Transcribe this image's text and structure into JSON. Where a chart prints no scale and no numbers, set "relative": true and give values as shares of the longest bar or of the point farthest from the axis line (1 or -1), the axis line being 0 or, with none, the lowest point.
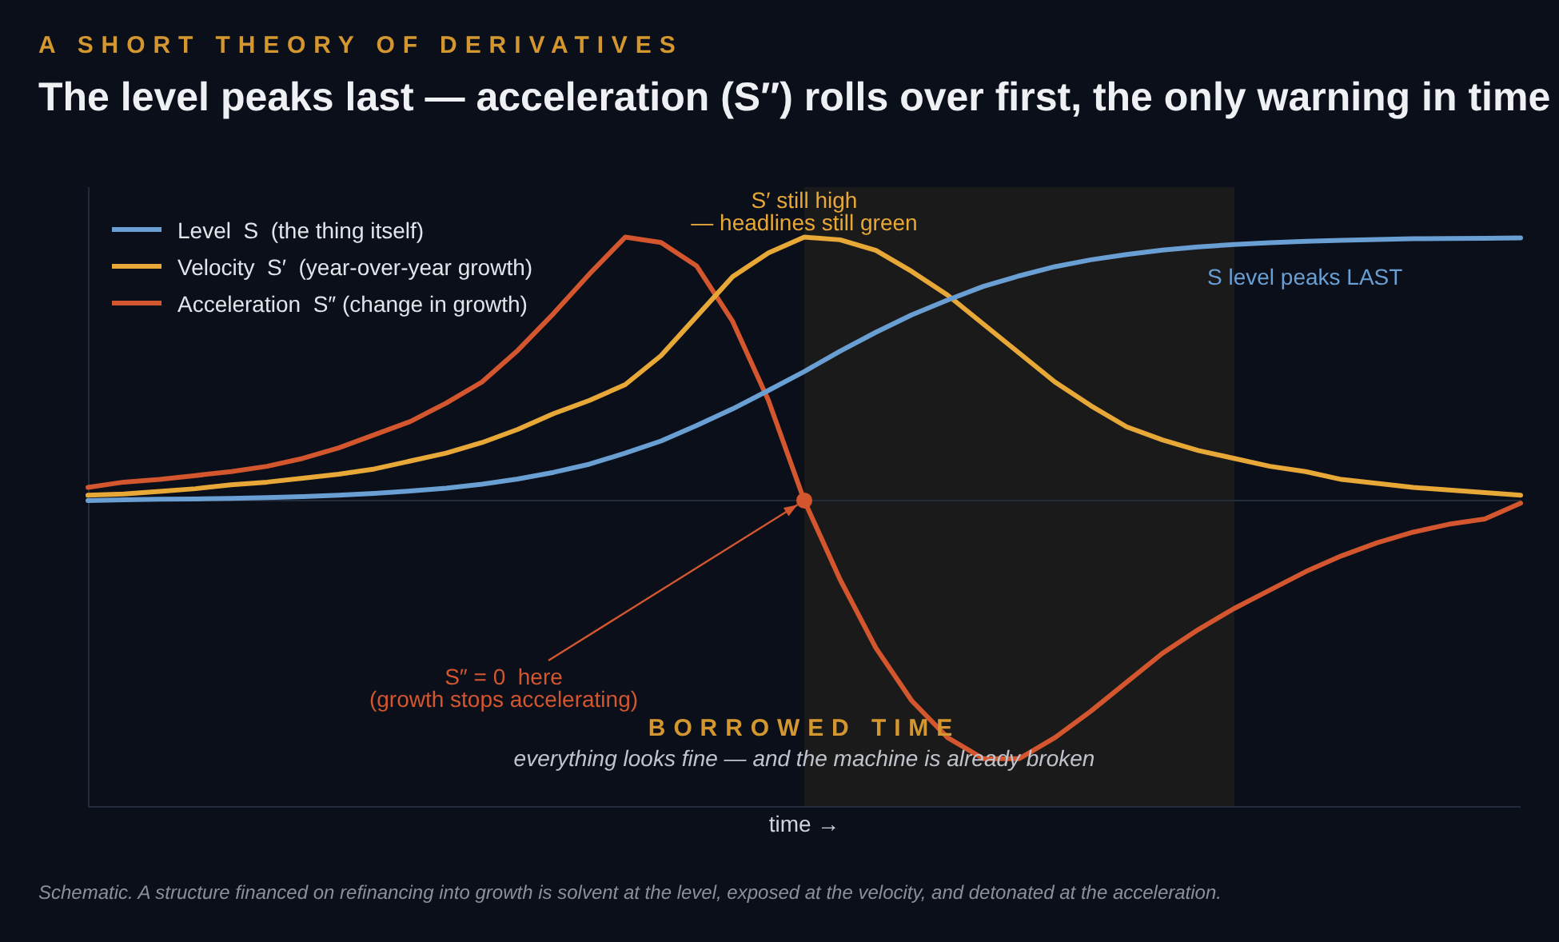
{
  "chart_data": {
    "type": "line",
    "subtitle": "A SHORT THEORY OF DERIVATIVES",
    "title": "The level peaks last — acceleration (S″) rolls over first, the only warning in time",
    "xlabel": "time →",
    "relative": true,
    "legend": "top left",
    "line_style": "solid",
    "categories": [
      null,
      null,
      null,
      null,
      null,
      null,
      null,
      null,
      null,
      null,
      null,
      null,
      null,
      null,
      null,
      null,
      null,
      null,
      null,
      null,
      null,
      null,
      null,
      null,
      null,
      null,
      null,
      null,
      null,
      null,
      null,
      null,
      null,
      null,
      null,
      null,
      null,
      null,
      null,
      null,
      null
    ],
    "series": [
      {
        "name": "Level  S  (the thing itself)",
        "color": "#6a9fd4",
        "values": [
          0.0,
          0.003,
          0.005,
          0.006,
          0.008,
          0.011,
          0.015,
          0.02,
          0.027,
          0.036,
          0.047,
          0.062,
          0.082,
          0.107,
          0.138,
          0.18,
          0.226,
          0.285,
          0.348,
          0.418,
          0.49,
          0.567,
          0.639,
          0.705,
          0.761,
          0.813,
          0.853,
          0.888,
          0.914,
          0.934,
          0.951,
          0.963,
          0.972,
          0.979,
          0.984,
          0.988,
          0.991,
          0.994,
          0.995,
          0.996,
          0.997
        ]
      },
      {
        "name": "Velocity  S′  (year-over-year growth)",
        "color": "#e8a838",
        "values": [
          0.02,
          0.025,
          0.035,
          0.045,
          0.06,
          0.07,
          0.085,
          0.1,
          0.12,
          0.15,
          0.18,
          0.22,
          0.27,
          0.33,
          0.38,
          0.44,
          0.55,
          0.7,
          0.85,
          0.94,
          1.0,
          0.99,
          0.95,
          0.87,
          0.78,
          0.67,
          0.56,
          0.45,
          0.36,
          0.28,
          0.23,
          0.19,
          0.16,
          0.13,
          0.11,
          0.08,
          0.065,
          0.05,
          0.04,
          0.03,
          0.02
        ]
      },
      {
        "name": "Acceleration  S″ (change in growth)",
        "color": "#d4562e",
        "values": [
          0.05,
          0.07,
          0.08,
          0.095,
          0.11,
          0.13,
          0.16,
          0.2,
          0.25,
          0.3,
          0.37,
          0.45,
          0.57,
          0.71,
          0.86,
          1.0,
          0.98,
          0.89,
          0.68,
          0.38,
          0.0,
          -0.3,
          -0.56,
          -0.76,
          -0.9,
          -0.98,
          -0.98,
          -0.9,
          -0.8,
          -0.69,
          -0.58,
          -0.49,
          -0.41,
          -0.34,
          -0.27,
          -0.21,
          -0.16,
          -0.12,
          -0.09,
          -0.07,
          -0.01
        ]
      }
    ],
    "annotations": [
      "S′ still high\n— headlines still green",
      "S level peaks LAST",
      "S″ = 0  here\n(growth stops accelerating)",
      "BORROWED TIME",
      "everything looks fine — and the machine is already broken",
      "Schematic. A structure financed on refinancing into growth is solvent at the level, exposed at the velocity, and detonated at the acceleration."
    ]
  }
}
